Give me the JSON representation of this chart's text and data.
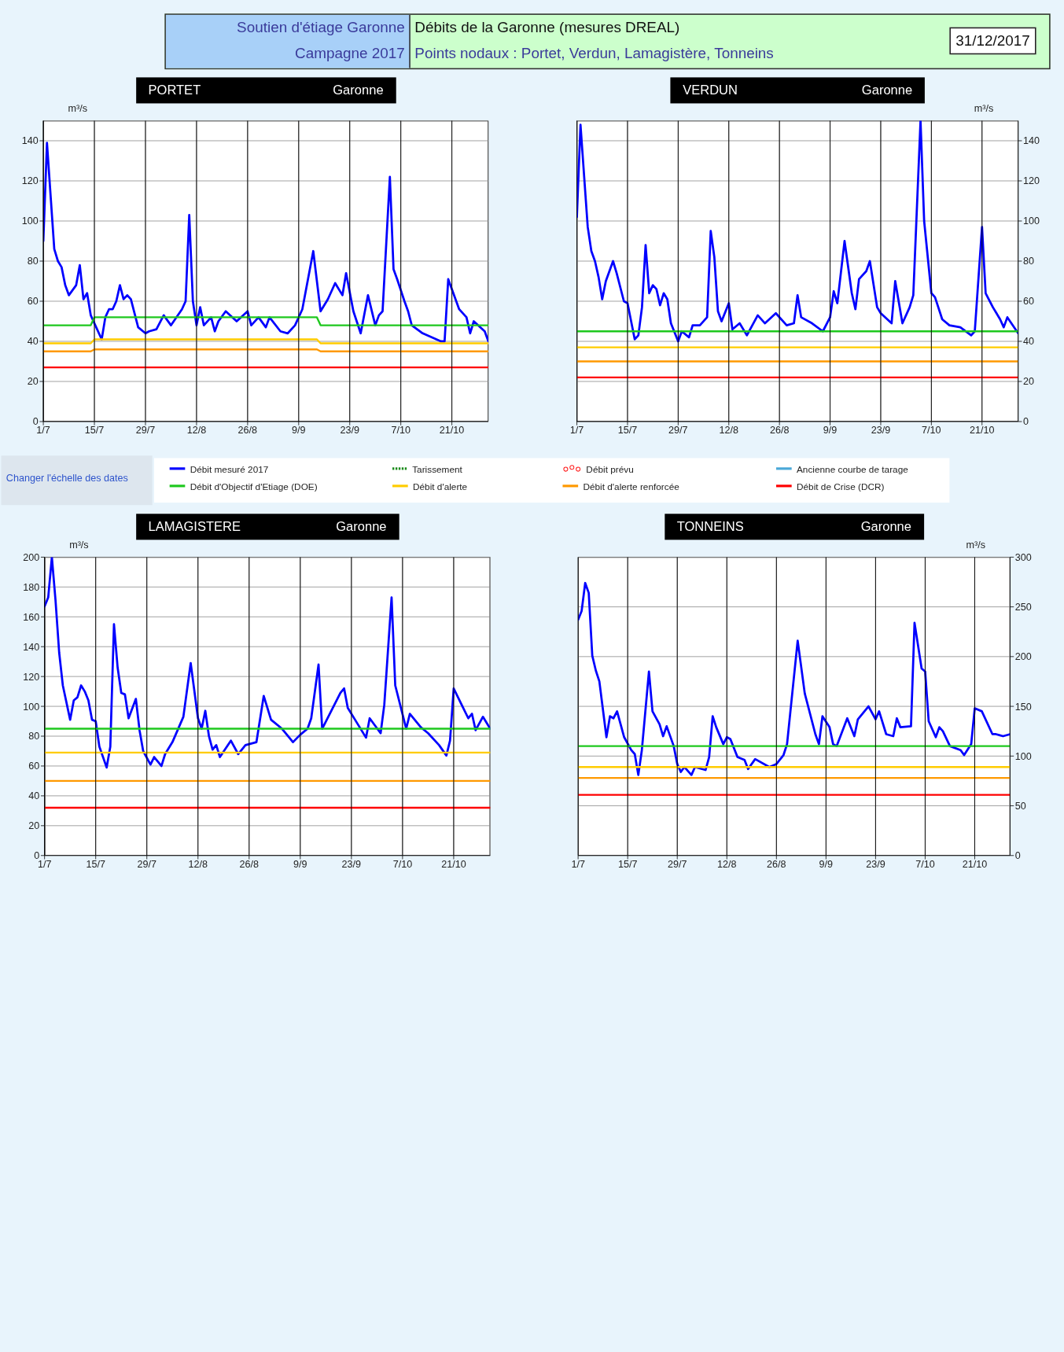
{
  "chart_data": [
    {
      "type": "line",
      "title": "PORTET",
      "subtitle": "Garonne",
      "ylabel": "m³/s",
      "legend": "bottom",
      "grid": true,
      "annotations": [
        "Soutien d'étiage Garonne",
        "Campagne 2017",
        "Débits de la Garonne (mesures DREAL)",
        "Points nodaux : Portet, Verdun, Lamagistère, Tonneins",
        "31/12/2017",
        "Changer l'échelle des dates",
        "Tarissement",
        "Débit prévu",
        "Ancienne courbe de tarage"
      ],
      "xlim": [
        "--07-01",
        "--10-31"
      ],
      "xticks": [
        {
          "value": "--07-01",
          "label": "1/7"
        },
        {
          "value": "--07-15",
          "label": "15/7"
        },
        {
          "value": "--07-29",
          "label": "29/7"
        },
        {
          "value": "--08-12",
          "label": "12/8"
        },
        {
          "value": "--08-26",
          "label": "26/8"
        },
        {
          "value": "--09-09",
          "label": "9/9"
        },
        {
          "value": "--09-23",
          "label": "23/9"
        },
        {
          "value": "--10-07",
          "label": "7/10"
        },
        {
          "value": "--10-21",
          "label": "21/10"
        }
      ],
      "ylim": [
        0,
        150
      ],
      "yticks": [
        0,
        20,
        40,
        60,
        80,
        100,
        120,
        140
      ],
      "series": [
        {
          "name": "Débit mesuré 2017",
          "color": "#0000ff",
          "x": [
            "--07-01",
            "--07-02",
            "--07-04",
            "--07-05",
            "--07-06",
            "--07-07",
            "--07-08",
            "--07-10",
            "--07-11",
            "--07-12",
            "--07-13",
            "--07-14",
            "--07-17",
            "--07-18",
            "--07-19",
            "--07-20",
            "--07-21",
            "--07-22",
            "--07-23",
            "--07-24",
            "--07-25",
            "--07-27",
            "--07-29",
            "--07-30",
            "--08-01",
            "--08-03",
            "--08-05",
            "--08-08",
            "--08-09",
            "--08-10",
            "--08-11",
            "--08-12",
            "--08-13",
            "--08-14",
            "--08-16",
            "--08-17",
            "--08-18",
            "--08-20",
            "--08-23",
            "--08-26",
            "--08-27",
            "--08-29",
            "--08-31",
            "--09-01",
            "--09-04",
            "--09-06",
            "--09-08",
            "--09-10",
            "--09-13",
            "--09-15",
            "--09-17",
            "--09-19",
            "--09-21",
            "--09-22",
            "--09-24",
            "--09-26",
            "--09-28",
            "--09-30",
            "--10-01",
            "--10-02",
            "--10-04",
            "--10-05",
            "--10-06",
            "--10-08",
            "--10-09",
            "--10-10",
            "--10-13",
            "--10-18",
            "--10-19",
            "--10-20",
            "--10-23",
            "--10-25",
            "--10-26",
            "--10-27",
            "--10-30",
            "--10-31"
          ],
          "values": [
            90,
            139,
            86,
            80,
            77,
            68,
            63,
            68,
            78,
            61,
            64,
            53,
            41,
            52,
            56,
            56,
            60,
            68,
            61,
            63,
            61,
            47,
            44,
            45,
            46,
            53,
            48,
            56,
            60,
            103,
            60,
            48,
            57,
            48,
            52,
            45,
            50,
            55,
            50,
            55,
            48,
            52,
            47,
            52,
            45,
            44,
            48,
            56,
            85,
            55,
            61,
            69,
            63,
            74,
            55,
            44,
            63,
            48,
            53,
            55,
            122,
            76,
            71,
            60,
            55,
            48,
            44,
            40,
            40,
            71,
            56,
            52,
            44,
            50,
            45,
            40
          ]
        },
        {
          "name": "Débit d'Objectif d'Etiage (DOE)",
          "color": "#1ec81e",
          "x": [
            "--07-01",
            "--07-14",
            "--07-15",
            "--09-14",
            "--09-15",
            "--10-31"
          ],
          "values": [
            48,
            48,
            52,
            52,
            48,
            48
          ]
        },
        {
          "name": "Débit d'alerte",
          "color": "#ffcc00",
          "x": [
            "--07-01",
            "--07-14",
            "--07-15",
            "--09-14",
            "--09-15",
            "--10-31"
          ],
          "values": [
            39,
            39,
            41,
            41,
            39,
            39
          ]
        },
        {
          "name": "Débit d'alerte renforcée",
          "color": "#ff9900",
          "x": [
            "--07-01",
            "--07-14",
            "--07-15",
            "--09-14",
            "--09-15",
            "--10-31"
          ],
          "values": [
            35,
            35,
            36,
            36,
            35,
            35
          ]
        },
        {
          "name": "Débit de Crise (DCR)",
          "color": "#ff0000",
          "x": [
            "--07-01",
            "--10-31"
          ],
          "values": [
            27,
            27
          ]
        }
      ]
    },
    {
      "type": "line",
      "title": "VERDUN",
      "subtitle": "Garonne",
      "ylabel": "m³/s",
      "grid": true,
      "xlim": [
        "--07-01",
        "--10-31"
      ],
      "xticks": [
        {
          "value": "--07-01",
          "label": "1/7"
        },
        {
          "value": "--07-15",
          "label": "15/7"
        },
        {
          "value": "--07-29",
          "label": "29/7"
        },
        {
          "value": "--08-12",
          "label": "12/8"
        },
        {
          "value": "--08-26",
          "label": "26/8"
        },
        {
          "value": "--09-09",
          "label": "9/9"
        },
        {
          "value": "--09-23",
          "label": "23/9"
        },
        {
          "value": "--10-07",
          "label": "7/10"
        },
        {
          "value": "--10-21",
          "label": "21/10"
        }
      ],
      "ylim": [
        0,
        150
      ],
      "yticks": [
        0,
        20,
        40,
        60,
        80,
        100,
        120,
        140
      ],
      "series": [
        {
          "color": "#0000ff",
          "x": [
            "--07-01",
            "--07-02",
            "--07-04",
            "--07-05",
            "--07-06",
            "--07-07",
            "--07-08",
            "--07-09",
            "--07-10",
            "--07-11",
            "--07-12",
            "--07-14",
            "--07-15",
            "--07-17",
            "--07-18",
            "--07-19",
            "--07-20",
            "--07-21",
            "--07-22",
            "--07-23",
            "--07-24",
            "--07-25",
            "--07-26",
            "--07-27",
            "--07-29",
            "--07-30",
            "--08-01",
            "--08-02",
            "--08-04",
            "--08-06",
            "--08-07",
            "--08-08",
            "--08-09",
            "--08-10",
            "--08-12",
            "--08-13",
            "--08-15",
            "--08-17",
            "--08-20",
            "--08-22",
            "--08-25",
            "--08-28",
            "--08-30",
            "--08-31",
            "--09-01",
            "--09-04",
            "--09-07",
            "--09-09",
            "--09-10",
            "--09-11",
            "--09-13",
            "--09-15",
            "--09-16",
            "--09-17",
            "--09-19",
            "--09-20",
            "--09-22",
            "--09-23",
            "--09-26",
            "--09-27",
            "--09-29",
            "--10-01",
            "--10-02",
            "--10-04",
            "--10-05",
            "--10-07",
            "--10-08",
            "--10-10",
            "--10-12",
            "--10-15",
            "--10-18",
            "--10-19",
            "--10-21",
            "--10-22",
            "--10-24",
            "--10-25",
            "--10-26",
            "--10-27",
            "--10-28",
            "--10-31"
          ],
          "values": [
            102,
            148,
            97,
            85,
            80,
            72,
            61,
            70,
            75,
            80,
            74,
            60,
            59,
            41,
            43,
            57,
            88,
            64,
            68,
            66,
            58,
            64,
            61,
            49,
            40,
            45,
            42,
            48,
            48,
            52,
            95,
            82,
            55,
            50,
            59,
            46,
            49,
            43,
            53,
            49,
            54,
            48,
            49,
            63,
            52,
            49,
            45,
            52,
            65,
            59,
            90,
            64,
            56,
            71,
            75,
            80,
            57,
            54,
            49,
            70,
            49,
            57,
            63,
            150,
            100,
            64,
            62,
            51,
            48,
            47,
            43,
            45,
            97,
            64,
            57,
            54,
            51,
            47,
            52,
            44
          ]
        },
        {
          "color": "#1ec81e",
          "x": [
            "--07-01",
            "--10-31"
          ],
          "values": [
            45,
            45
          ]
        },
        {
          "color": "#ffcc00",
          "x": [
            "--07-01",
            "--10-31"
          ],
          "values": [
            37,
            37
          ]
        },
        {
          "color": "#ff9900",
          "x": [
            "--07-01",
            "--10-31"
          ],
          "values": [
            30,
            30
          ]
        },
        {
          "color": "#ff0000",
          "x": [
            "--07-01",
            "--10-31"
          ],
          "values": [
            22,
            22
          ]
        }
      ]
    },
    {
      "type": "line",
      "title": "LAMAGISTERE",
      "subtitle": "Garonne",
      "ylabel": "m³/s",
      "grid": true,
      "xlim": [
        "--07-01",
        "--10-31"
      ],
      "xticks": [
        {
          "value": "--07-01",
          "label": "1/7"
        },
        {
          "value": "--07-15",
          "label": "15/7"
        },
        {
          "value": "--07-29",
          "label": "29/7"
        },
        {
          "value": "--08-12",
          "label": "12/8"
        },
        {
          "value": "--08-26",
          "label": "26/8"
        },
        {
          "value": "--09-09",
          "label": "9/9"
        },
        {
          "value": "--09-23",
          "label": "23/9"
        },
        {
          "value": "--10-07",
          "label": "7/10"
        },
        {
          "value": "--10-21",
          "label": "21/10"
        }
      ],
      "ylim": [
        0,
        200
      ],
      "yticks": [
        0,
        20,
        40,
        60,
        80,
        100,
        120,
        140,
        160,
        180,
        200
      ],
      "series": [
        {
          "color": "#0000ff",
          "x": [
            "--07-01",
            "--07-02",
            "--07-03",
            "--07-04",
            "--07-05",
            "--07-06",
            "--07-08",
            "--07-09",
            "--07-10",
            "--07-11",
            "--07-12",
            "--07-13",
            "--07-14",
            "--07-15",
            "--07-16",
            "--07-18",
            "--07-19",
            "--07-20",
            "--07-21",
            "--07-22",
            "--07-23",
            "--07-24",
            "--07-26",
            "--07-27",
            "--07-28",
            "--07-30",
            "--07-31",
            "--08-02",
            "--08-03",
            "--08-05",
            "--08-08",
            "--08-10",
            "--08-12",
            "--08-13",
            "--08-14",
            "--08-15",
            "--08-16",
            "--08-17",
            "--08-18",
            "--08-21",
            "--08-23",
            "--08-25",
            "--08-28",
            "--08-30",
            "--09-01",
            "--09-04",
            "--09-06",
            "--09-07",
            "--09-09",
            "--09-11",
            "--09-12",
            "--09-14",
            "--09-15",
            "--09-20",
            "--09-21",
            "--09-22",
            "--09-24",
            "--09-27",
            "--09-28",
            "--10-01",
            "--10-02",
            "--10-04",
            "--10-05",
            "--10-08",
            "--10-09",
            "--10-12",
            "--10-14",
            "--10-17",
            "--10-19",
            "--10-20",
            "--10-21",
            "--10-23",
            "--10-25",
            "--10-26",
            "--10-27",
            "--10-29",
            "--10-31"
          ],
          "values": [
            167,
            173,
            200,
            171,
            136,
            114,
            91,
            104,
            106,
            114,
            110,
            104,
            91,
            90,
            73,
            59,
            73,
            155,
            126,
            109,
            108,
            92,
            105,
            84,
            70,
            61,
            66,
            60,
            68,
            76,
            93,
            129,
            92,
            85,
            97,
            80,
            71,
            74,
            66,
            77,
            68,
            74,
            76,
            107,
            91,
            85,
            79,
            76,
            81,
            85,
            92,
            128,
            85,
            109,
            112,
            99,
            91,
            79,
            92,
            82,
            101,
            173,
            114,
            85,
            95,
            86,
            82,
            74,
            67,
            77,
            112,
            102,
            92,
            95,
            84,
            93,
            85
          ]
        },
        {
          "color": "#1ec81e",
          "x": [
            "--07-01",
            "--10-31"
          ],
          "values": [
            85,
            85
          ]
        },
        {
          "color": "#ffcc00",
          "x": [
            "--07-01",
            "--10-31"
          ],
          "values": [
            69,
            69
          ]
        },
        {
          "color": "#ff9900",
          "x": [
            "--07-01",
            "--10-31"
          ],
          "values": [
            50,
            50
          ]
        },
        {
          "color": "#ff0000",
          "x": [
            "--07-01",
            "--10-31"
          ],
          "values": [
            32,
            32
          ]
        }
      ]
    },
    {
      "type": "line",
      "title": "TONNEINS",
      "subtitle": "Garonne",
      "ylabel": "m³/s",
      "grid": true,
      "xlim": [
        "--07-01",
        "--10-31"
      ],
      "xticks": [
        {
          "value": "--07-01",
          "label": "1/7"
        },
        {
          "value": "--07-15",
          "label": "15/7"
        },
        {
          "value": "--07-29",
          "label": "29/7"
        },
        {
          "value": "--08-12",
          "label": "12/8"
        },
        {
          "value": "--08-26",
          "label": "26/8"
        },
        {
          "value": "--09-09",
          "label": "9/9"
        },
        {
          "value": "--09-23",
          "label": "23/9"
        },
        {
          "value": "--10-07",
          "label": "7/10"
        },
        {
          "value": "--10-21",
          "label": "21/10"
        }
      ],
      "ylim": [
        0,
        300
      ],
      "yticks": [
        0,
        50,
        100,
        150,
        200,
        250,
        300
      ],
      "series": [
        {
          "color": "#0000ff",
          "x": [
            "--07-01",
            "--07-02",
            "--07-03",
            "--07-04",
            "--07-05",
            "--07-06",
            "--07-07",
            "--07-09",
            "--07-10",
            "--07-11",
            "--07-12",
            "--07-13",
            "--07-14",
            "--07-16",
            "--07-17",
            "--07-18",
            "--07-19",
            "--07-21",
            "--07-22",
            "--07-24",
            "--07-25",
            "--07-26",
            "--07-28",
            "--07-29",
            "--07-30",
            "--07-31",
            "--08-02",
            "--08-03",
            "--08-06",
            "--08-07",
            "--08-08",
            "--08-09",
            "--08-11",
            "--08-12",
            "--08-13",
            "--08-15",
            "--08-17",
            "--08-18",
            "--08-20",
            "--08-24",
            "--08-26",
            "--08-28",
            "--08-29",
            "--09-01",
            "--09-03",
            "--09-06",
            "--09-07",
            "--09-08",
            "--09-10",
            "--09-11",
            "--09-12",
            "--09-15",
            "--09-17",
            "--09-18",
            "--09-21",
            "--09-23",
            "--09-24",
            "--09-26",
            "--09-28",
            "--09-29",
            "--09-30",
            "--10-03",
            "--10-04",
            "--10-06",
            "--10-07",
            "--10-08",
            "--10-10",
            "--10-11",
            "--10-12",
            "--10-14",
            "--10-17",
            "--10-18",
            "--10-20",
            "--10-21",
            "--10-23",
            "--10-26",
            "--10-27",
            "--10-29",
            "--10-31"
          ],
          "values": [
            237,
            246,
            274,
            264,
            201,
            186,
            175,
            119,
            140,
            138,
            145,
            132,
            119,
            106,
            102,
            81,
            106,
            185,
            145,
            132,
            120,
            130,
            110,
            92,
            84,
            89,
            81,
            89,
            86,
            99,
            140,
            129,
            112,
            119,
            117,
            99,
            96,
            87,
            97,
            89,
            92,
            101,
            112,
            216,
            163,
            122,
            112,
            140,
            129,
            112,
            110,
            138,
            120,
            137,
            150,
            137,
            145,
            122,
            120,
            138,
            129,
            130,
            234,
            188,
            185,
            135,
            119,
            129,
            125,
            110,
            106,
            101,
            112,
            148,
            145,
            122,
            122,
            120,
            122
          ]
        },
        {
          "color": "#1ec81e",
          "x": [
            "--07-01",
            "--10-31"
          ],
          "values": [
            110,
            110
          ]
        },
        {
          "color": "#ffcc00",
          "x": [
            "--07-01",
            "--10-31"
          ],
          "values": [
            89,
            89
          ]
        },
        {
          "color": "#ff9900",
          "x": [
            "--07-01",
            "--10-31"
          ],
          "values": [
            78,
            78
          ]
        },
        {
          "color": "#ff0000",
          "x": [
            "--07-01",
            "--10-31"
          ],
          "values": [
            61,
            61
          ]
        }
      ]
    }
  ]
}
